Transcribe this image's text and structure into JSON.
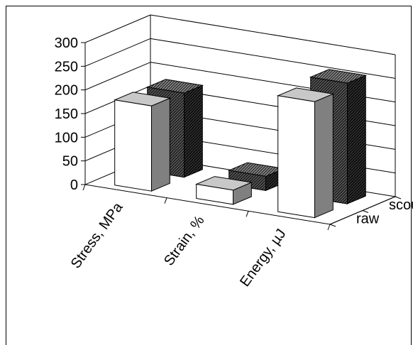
{
  "chart_data": {
    "type": "bar",
    "categories": [
      "Stress, MPa",
      "Strain, %",
      "Energy, µJ"
    ],
    "series": [
      {
        "name": "raw",
        "values": [
          180,
          30,
          245
        ]
      },
      {
        "name": "scoured",
        "values": [
          178,
          30,
          255
        ]
      }
    ],
    "yticks": [
      "0",
      "50",
      "100",
      "150",
      "200",
      "250",
      "300"
    ],
    "ylim": [
      0,
      300
    ],
    "grid": true,
    "style": "3d-clustered",
    "colors": {
      "raw": "#ffffff",
      "scoured": "#222222"
    }
  }
}
